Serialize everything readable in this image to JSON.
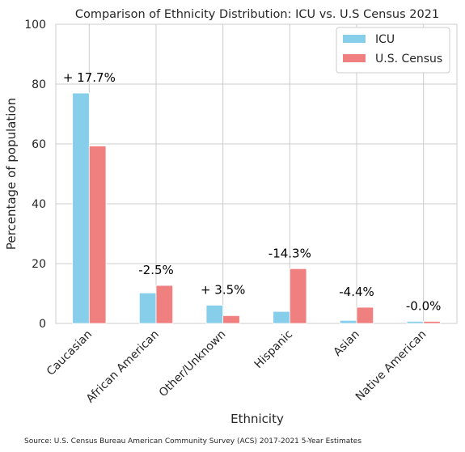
{
  "chart_data": {
    "type": "bar",
    "title": "Comparison of Ethnicity Distribution: ICU vs. U.S Census 2021",
    "xlabel": "Ethnicity",
    "ylabel": "Percentage of population",
    "ylim": [
      0,
      100
    ],
    "yticks": [
      "0",
      "20",
      "40",
      "60",
      "80",
      "100"
    ],
    "categories": [
      "Caucasian",
      "African American",
      "Other/Unknown",
      "Hispanic",
      "Asian",
      "Native American"
    ],
    "series": [
      {
        "name": "ICU",
        "color": "#87CEEB",
        "values": [
          77.0,
          10.2,
          6.1,
          4.0,
          1.0,
          0.7
        ]
      },
      {
        "name": "U.S. Census",
        "color": "#F08080",
        "values": [
          59.3,
          12.7,
          2.6,
          18.3,
          5.4,
          0.7
        ]
      }
    ],
    "annotations": [
      "+ 17.7%",
      "-2.5%",
      "+ 3.5%",
      "-14.3%",
      "-4.4%",
      "-0.0%"
    ],
    "grid": true,
    "legend_position": "top-right",
    "source": "Source: U.S. Census Bureau American Community Survey (ACS) 2017-2021 5-Year Estimates"
  }
}
